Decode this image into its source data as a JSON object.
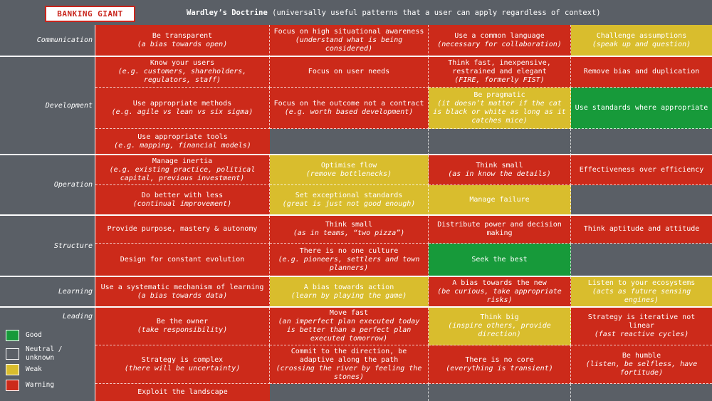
{
  "header": {
    "badge": "BANKING GIANT",
    "title_bold": "Wardley’s Doctrine",
    "title_rest": " (universally useful patterns that a user can apply regardless of context)"
  },
  "colors": {
    "red": "#cc2a1a",
    "yellow": "#d9bd2d",
    "green": "#179a3a",
    "grey": "#5a5f66"
  },
  "categories": {
    "communication": "Communication",
    "development": "Development",
    "operation": "Operation",
    "structure": "Structure",
    "learning": "Learning",
    "leading": "Leading"
  },
  "cells": {
    "c_1_1": {
      "main": "Be transparent",
      "sub": "(a bias towards open)",
      "status": "warning"
    },
    "c_1_2": {
      "main": "Focus on high situational awareness",
      "sub": "(understand what is being considered)",
      "status": "warning"
    },
    "c_1_3": {
      "main": "Use a common language",
      "sub": "(necessary for collaboration)",
      "status": "warning"
    },
    "c_1_4": {
      "main": "Challenge assumptions",
      "sub": "(speak up and question)",
      "status": "weak"
    },
    "c_2_1": {
      "main": "Know your users",
      "sub": "(e.g. customers, shareholders, regulators, staff)",
      "status": "warning"
    },
    "c_2_2": {
      "main": "Focus on user needs",
      "sub": "",
      "status": "warning"
    },
    "c_2_3": {
      "main": "Think fast, inexpensive, restrained and elegant",
      "sub": "(FIRE, formerly FIST)",
      "status": "warning"
    },
    "c_2_4": {
      "main": "Remove bias and duplication",
      "sub": "",
      "status": "warning"
    },
    "c_2_5": {
      "main": "Use appropriate methods",
      "sub": "(e.g. agile vs lean vs six sigma)",
      "status": "warning"
    },
    "c_2_6": {
      "main": "Focus on the outcome not a contract",
      "sub": "(e.g. worth based development)",
      "status": "warning"
    },
    "c_2_7": {
      "main": "Be pragmatic",
      "sub": "(it doesn’t matter if the cat is black or white as long as it catches mice)",
      "status": "weak"
    },
    "c_2_8": {
      "main": "Use standards where appropriate",
      "sub": "",
      "status": "good"
    },
    "c_2_9": {
      "main": "Use appropriate tools",
      "sub": "(e.g. mapping, financial models)",
      "status": "warning"
    },
    "c_3_1": {
      "main": "Manage inertia",
      "sub": "(e.g. existing practice, political capital, previous investment)",
      "status": "warning"
    },
    "c_3_2": {
      "main": "Optimise flow",
      "sub": "(remove bottlenecks)",
      "status": "weak"
    },
    "c_3_3": {
      "main": "Think small",
      "sub": "(as in know the details)",
      "status": "warning"
    },
    "c_3_4": {
      "main": "Effectiveness over efficiency",
      "sub": "",
      "status": "warning"
    },
    "c_3_5": {
      "main": "Do better with less",
      "sub": "(continual improvement)",
      "status": "warning"
    },
    "c_3_6": {
      "main": "Set exceptional standards",
      "sub": "(great is just not good enough)",
      "status": "weak"
    },
    "c_3_7": {
      "main": "Manage failure",
      "sub": "",
      "status": "weak"
    },
    "c_4_1": {
      "main": "Provide purpose, mastery & autonomy",
      "sub": "",
      "status": "warning"
    },
    "c_4_2": {
      "main": "Think small",
      "sub": "(as in teams, “two pizza”)",
      "status": "warning"
    },
    "c_4_3": {
      "main": "Distribute power and decision making",
      "sub": "",
      "status": "warning"
    },
    "c_4_4": {
      "main": "Think aptitude and attitude",
      "sub": "",
      "status": "warning"
    },
    "c_4_5": {
      "main": "Design for constant evolution",
      "sub": "",
      "status": "warning"
    },
    "c_4_6": {
      "main": "There is no one culture",
      "sub": "(e.g. pioneers, settlers and town planners)",
      "status": "warning"
    },
    "c_4_7": {
      "main": "Seek the best",
      "sub": "",
      "status": "good"
    },
    "c_5_1": {
      "main": "Use a systematic mechanism of learning",
      "sub": "(a bias towards data)",
      "status": "warning"
    },
    "c_5_2": {
      "main": "A bias towards action",
      "sub": "(learn by playing the game)",
      "status": "weak"
    },
    "c_5_3": {
      "main": "A bias towards the new",
      "sub": "(be curious, take appropriate risks)",
      "status": "warning"
    },
    "c_5_4": {
      "main": "Listen to your ecosystems",
      "sub": "(acts as future sensing engines)",
      "status": "weak"
    },
    "c_6_1": {
      "main": "Be the owner",
      "sub": "(take responsibility)",
      "status": "warning"
    },
    "c_6_2": {
      "main": "Move fast",
      "sub": "(an imperfect plan executed today is better than a perfect plan executed tomorrow)",
      "status": "warning"
    },
    "c_6_3": {
      "main": "Think big",
      "sub": "(inspire others, provide direction)",
      "status": "weak"
    },
    "c_6_4": {
      "main": "Strategy is iterative not linear",
      "sub": "(fast reactive cycles)",
      "status": "warning"
    },
    "c_6_5": {
      "main": "Strategy is complex",
      "sub": "(there will be uncertainty)",
      "status": "warning"
    },
    "c_6_6": {
      "main": "Commit to the direction, be adaptive along the path",
      "sub": "(crossing the river by feeling the stones)",
      "status": "warning"
    },
    "c_6_7": {
      "main": "There is no core",
      "sub": "(everything is transient)",
      "status": "warning"
    },
    "c_6_8": {
      "main": "Be humble",
      "sub": "(listen, be selfless, have fortitude)",
      "status": "warning"
    },
    "c_6_9": {
      "main": "Exploit the landscape",
      "sub": "",
      "status": "warning"
    }
  },
  "legend": {
    "good": "Good",
    "neutral": "Neutral / unknown",
    "weak": "Weak",
    "warning": "Warning"
  }
}
